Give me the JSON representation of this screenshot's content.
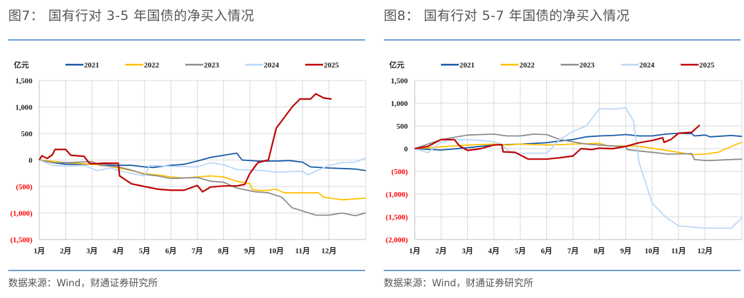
{
  "source": "数据来源：Wind，财通证券研究所",
  "colors": {
    "2021": "#1559a7",
    "2022": "#ffc000",
    "2023": "#8c8c8c",
    "2024": "#b9d8f7",
    "2025": "#c00000",
    "negative_label": "#ff0000",
    "rule": "#6e9fd4"
  },
  "chart_data": [
    {
      "type": "line",
      "title": "图7： 国有行对 3-5 年国债的净买入情况",
      "ylabel": "亿元",
      "ylim": [
        -1500,
        1500
      ],
      "yticks": [
        1500,
        1000,
        500,
        0,
        -500,
        -1000,
        -1500
      ],
      "ytick_labels": [
        "1,500",
        "1,000",
        "500",
        "0",
        "(500)",
        "(1,000)",
        "(1,500)"
      ],
      "xticks": [
        "1月",
        "2月",
        "3月",
        "4月",
        "5月",
        "6月",
        "7月",
        "8月",
        "9月",
        "10月",
        "11月",
        "12月"
      ],
      "x_unit": "month index (0 = 1月初)",
      "grid": true,
      "legend": "top",
      "series": [
        {
          "name": "2021",
          "points": [
            [
              0,
              0
            ],
            [
              0.5,
              -50
            ],
            [
              1,
              -80
            ],
            [
              2,
              -80
            ],
            [
              3,
              -100
            ],
            [
              3.5,
              -100
            ],
            [
              4,
              -130
            ],
            [
              4.3,
              -140
            ],
            [
              5,
              -100
            ],
            [
              5.5,
              -80
            ],
            [
              6,
              -20
            ],
            [
              6.5,
              50
            ],
            [
              7,
              90
            ],
            [
              7.5,
              130
            ],
            [
              7.7,
              0
            ],
            [
              8.3,
              -20
            ],
            [
              9,
              -20
            ],
            [
              9.5,
              -10
            ],
            [
              10,
              -40
            ],
            [
              10.3,
              -130
            ],
            [
              11,
              -150
            ],
            [
              12,
              -170
            ],
            [
              12.4,
              -200
            ]
          ]
        },
        {
          "name": "2022",
          "points": [
            [
              0,
              0
            ],
            [
              1,
              -50
            ],
            [
              2,
              -80
            ],
            [
              2.5,
              -100
            ],
            [
              3,
              -150
            ],
            [
              3.5,
              -200
            ],
            [
              4,
              -260
            ],
            [
              4.5,
              -280
            ],
            [
              5,
              -320
            ],
            [
              5.5,
              -340
            ],
            [
              6,
              -320
            ],
            [
              6.5,
              -300
            ],
            [
              7,
              -320
            ],
            [
              7.5,
              -400
            ],
            [
              8,
              -450
            ],
            [
              8.1,
              -560
            ],
            [
              8.5,
              -580
            ],
            [
              9,
              -550
            ],
            [
              9.3,
              -620
            ],
            [
              10.6,
              -620
            ],
            [
              10.8,
              -700
            ],
            [
              11.5,
              -750
            ],
            [
              12.4,
              -720
            ]
          ]
        },
        {
          "name": "2023",
          "points": [
            [
              0,
              0
            ],
            [
              0.5,
              -50
            ],
            [
              1,
              -50
            ],
            [
              2,
              -30
            ],
            [
              2.3,
              -100
            ],
            [
              3,
              -130
            ],
            [
              3.5,
              -190
            ],
            [
              4,
              -270
            ],
            [
              4.5,
              -300
            ],
            [
              5,
              -350
            ],
            [
              6,
              -330
            ],
            [
              6.5,
              -400
            ],
            [
              7,
              -420
            ],
            [
              7.5,
              -530
            ],
            [
              8.2,
              -600
            ],
            [
              8.7,
              -620
            ],
            [
              9.2,
              -700
            ],
            [
              9.6,
              -900
            ],
            [
              10.5,
              -1040
            ],
            [
              11,
              -1040
            ],
            [
              11.5,
              -1000
            ],
            [
              12,
              -1050
            ],
            [
              12.4,
              -1000
            ]
          ]
        },
        {
          "name": "2024",
          "points": [
            [
              0,
              0
            ],
            [
              0.5,
              -100
            ],
            [
              1,
              -120
            ],
            [
              1.7,
              -100
            ],
            [
              2.2,
              -200
            ],
            [
              2.7,
              -150
            ],
            [
              3,
              -200
            ],
            [
              3.5,
              -250
            ],
            [
              4,
              -300
            ],
            [
              4.2,
              -100
            ],
            [
              5,
              -120
            ],
            [
              6,
              -130
            ],
            [
              6.5,
              -50
            ],
            [
              7,
              -90
            ],
            [
              7.5,
              -180
            ],
            [
              8.5,
              -200
            ],
            [
              9,
              -230
            ],
            [
              10,
              -210
            ],
            [
              10.2,
              -280
            ],
            [
              11,
              -100
            ],
            [
              11.5,
              -50
            ],
            [
              12,
              -40
            ],
            [
              12.4,
              40
            ]
          ]
        },
        {
          "name": "2025",
          "points": [
            [
              0,
              0
            ],
            [
              0.1,
              80
            ],
            [
              0.3,
              30
            ],
            [
              0.5,
              100
            ],
            [
              0.6,
              200
            ],
            [
              1,
              200
            ],
            [
              1.2,
              90
            ],
            [
              1.7,
              70
            ],
            [
              1.9,
              -60
            ],
            [
              2,
              -70
            ],
            [
              2.5,
              -60
            ],
            [
              3,
              -60
            ],
            [
              3.05,
              -300
            ],
            [
              3.5,
              -450
            ],
            [
              4,
              -500
            ],
            [
              4.5,
              -550
            ],
            [
              5,
              -570
            ],
            [
              5.5,
              -570
            ],
            [
              6,
              -480
            ],
            [
              6.2,
              -600
            ],
            [
              6.5,
              -510
            ],
            [
              7,
              -490
            ],
            [
              7.5,
              -490
            ],
            [
              7.8,
              -460
            ],
            [
              8,
              -250
            ],
            [
              8.3,
              -50
            ],
            [
              8.7,
              0
            ],
            [
              9,
              600
            ],
            [
              9.3,
              800
            ],
            [
              9.6,
              1000
            ],
            [
              9.9,
              1150
            ],
            [
              10.3,
              1150
            ],
            [
              10.5,
              1250
            ],
            [
              10.8,
              1170
            ],
            [
              11.1,
              1150
            ]
          ]
        }
      ]
    },
    {
      "type": "line",
      "title": "图8： 国有行对 5-7 年国债的净买入情况",
      "ylabel": "亿元",
      "ylim": [
        -2000,
        1500
      ],
      "yticks": [
        1500,
        1000,
        500,
        0,
        -500,
        -1000,
        -1500,
        -2000
      ],
      "ytick_labels": [
        "1,500",
        "1,000",
        "500",
        "0",
        "(500)",
        "(1,000)",
        "(1,500)",
        "(2,000)"
      ],
      "xticks": [
        "1月",
        "2月",
        "3月",
        "4月",
        "5月",
        "6月",
        "7月",
        "8月",
        "9月",
        "10月",
        "11月",
        "12月"
      ],
      "x_unit": "month index (0 = 1月初)",
      "grid": true,
      "legend": "top",
      "series": [
        {
          "name": "2021",
          "points": [
            [
              0,
              0
            ],
            [
              1,
              -30
            ],
            [
              2,
              20
            ],
            [
              2.5,
              50
            ],
            [
              3,
              80
            ],
            [
              4,
              100
            ],
            [
              5,
              130
            ],
            [
              5.5,
              170
            ],
            [
              6,
              200
            ],
            [
              6.5,
              260
            ],
            [
              7,
              280
            ],
            [
              7.5,
              290
            ],
            [
              8,
              310
            ],
            [
              8.5,
              280
            ],
            [
              9,
              280
            ],
            [
              9.5,
              320
            ],
            [
              10,
              340
            ],
            [
              10.5,
              330
            ],
            [
              10.6,
              280
            ],
            [
              11,
              300
            ],
            [
              11.2,
              260
            ],
            [
              12,
              290
            ],
            [
              12.4,
              270
            ]
          ]
        },
        {
          "name": "2022",
          "points": [
            [
              0,
              0
            ],
            [
              1,
              40
            ],
            [
              2,
              80
            ],
            [
              3,
              100
            ],
            [
              3.5,
              80
            ],
            [
              4,
              100
            ],
            [
              5,
              80
            ],
            [
              6,
              100
            ],
            [
              7,
              120
            ],
            [
              7.3,
              60
            ],
            [
              8,
              60
            ],
            [
              8.5,
              50
            ],
            [
              9,
              10
            ],
            [
              10,
              -80
            ],
            [
              10.5,
              -130
            ],
            [
              11,
              -120
            ],
            [
              11.5,
              -80
            ],
            [
              12,
              50
            ],
            [
              12.4,
              140
            ]
          ]
        },
        {
          "name": "2023",
          "points": [
            [
              0,
              0
            ],
            [
              0.5,
              100
            ],
            [
              1,
              200
            ],
            [
              1.5,
              250
            ],
            [
              2,
              300
            ],
            [
              3,
              320
            ],
            [
              3.5,
              280
            ],
            [
              4,
              280
            ],
            [
              4.5,
              320
            ],
            [
              5,
              310
            ],
            [
              5.5,
              200
            ],
            [
              6,
              150
            ],
            [
              6.5,
              100
            ],
            [
              7,
              80
            ],
            [
              8,
              40
            ],
            [
              8.05,
              -20
            ],
            [
              8.5,
              -50
            ],
            [
              9,
              -80
            ],
            [
              9.6,
              -120
            ],
            [
              10.5,
              -110
            ],
            [
              10.6,
              -240
            ],
            [
              11,
              -260
            ],
            [
              11.2,
              -260
            ],
            [
              12,
              -240
            ],
            [
              12.4,
              -230
            ]
          ]
        },
        {
          "name": "2024",
          "points": [
            [
              0,
              0
            ],
            [
              0.5,
              -90
            ],
            [
              1,
              150
            ],
            [
              1.5,
              200
            ],
            [
              2,
              200
            ],
            [
              2.5,
              180
            ],
            [
              3,
              150
            ],
            [
              3.2,
              120
            ],
            [
              3.7,
              -100
            ],
            [
              5,
              -100
            ],
            [
              5.5,
              200
            ],
            [
              6,
              380
            ],
            [
              6.5,
              500
            ],
            [
              7,
              880
            ],
            [
              7.5,
              870
            ],
            [
              8,
              900
            ],
            [
              8.3,
              600
            ],
            [
              8.5,
              -300
            ],
            [
              9,
              -1200
            ],
            [
              9.5,
              -1500
            ],
            [
              10,
              -1700
            ],
            [
              11,
              -1750
            ],
            [
              12,
              -1750
            ],
            [
              12.4,
              -1520
            ]
          ]
        },
        {
          "name": "2025",
          "points": [
            [
              0,
              0
            ],
            [
              0.5,
              50
            ],
            [
              1,
              200
            ],
            [
              1.5,
              200
            ],
            [
              1.7,
              60
            ],
            [
              2,
              -40
            ],
            [
              2.5,
              0
            ],
            [
              3,
              80
            ],
            [
              3.3,
              90
            ],
            [
              3.35,
              -70
            ],
            [
              3.8,
              -80
            ],
            [
              4.3,
              -230
            ],
            [
              5,
              -230
            ],
            [
              5.5,
              -200
            ],
            [
              6,
              -160
            ],
            [
              6.3,
              0
            ],
            [
              6.7,
              -20
            ],
            [
              7,
              10
            ],
            [
              7.5,
              0
            ],
            [
              8,
              50
            ],
            [
              8.5,
              130
            ],
            [
              9,
              180
            ],
            [
              9.4,
              240
            ],
            [
              9.45,
              140
            ],
            [
              9.7,
              200
            ],
            [
              10,
              340
            ],
            [
              10.5,
              360
            ],
            [
              10.8,
              520
            ]
          ]
        }
      ]
    }
  ]
}
